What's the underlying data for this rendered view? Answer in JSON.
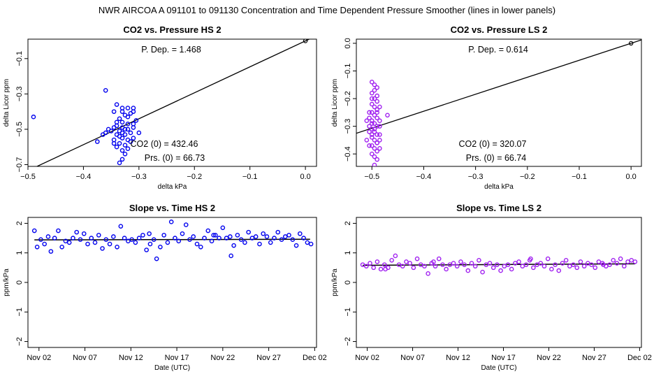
{
  "page_title": "NWR   AIRCOA A   091101 to 091130   Concentration and Time Dependent Pressure Smoother (lines in lower panels)",
  "colors": {
    "hs": "#0000ee",
    "ls": "#a020f0",
    "line": "#000000"
  },
  "chart_data": [
    {
      "id": "p1",
      "type": "scatter",
      "title": "CO2 vs. Pressure HS 2",
      "xlabel": "delta kPa",
      "ylabel": "delta Licor ppm",
      "xlim": [
        -0.5,
        0.02
      ],
      "ylim": [
        -0.71,
        0.01
      ],
      "xticks": [
        -0.5,
        -0.4,
        -0.3,
        -0.2,
        -0.1,
        0.0
      ],
      "xtick_labels": [
        "−0.5",
        "−0.4",
        "−0.3",
        "−0.2",
        "−0.1",
        "0.0"
      ],
      "yticks": [
        -0.7,
        -0.5,
        -0.3,
        -0.1
      ],
      "ytick_labels": [
        "−0.7",
        "−0.5",
        "−0.3",
        "−0.1"
      ],
      "fit_line": {
        "slope": 1.468,
        "intercept": 0.0
      },
      "origin_point": [
        0.0,
        0.0
      ],
      "series_color": "#0000ee",
      "points": [
        [
          -0.49,
          -0.43
        ],
        [
          -0.36,
          -0.28
        ],
        [
          -0.34,
          -0.36
        ],
        [
          -0.345,
          -0.4
        ],
        [
          -0.33,
          -0.38
        ],
        [
          -0.32,
          -0.38
        ],
        [
          -0.31,
          -0.38
        ],
        [
          -0.325,
          -0.42
        ],
        [
          -0.315,
          -0.41
        ],
        [
          -0.335,
          -0.44
        ],
        [
          -0.33,
          -0.46
        ],
        [
          -0.32,
          -0.47
        ],
        [
          -0.34,
          -0.48
        ],
        [
          -0.31,
          -0.49
        ],
        [
          -0.325,
          -0.5
        ],
        [
          -0.335,
          -0.51
        ],
        [
          -0.33,
          -0.52
        ],
        [
          -0.315,
          -0.52
        ],
        [
          -0.34,
          -0.53
        ],
        [
          -0.35,
          -0.51
        ],
        [
          -0.345,
          -0.49
        ],
        [
          -0.36,
          -0.52
        ],
        [
          -0.365,
          -0.53
        ],
        [
          -0.375,
          -0.57
        ],
        [
          -0.33,
          -0.55
        ],
        [
          -0.32,
          -0.56
        ],
        [
          -0.335,
          -0.58
        ],
        [
          -0.31,
          -0.55
        ],
        [
          -0.325,
          -0.59
        ],
        [
          -0.345,
          -0.58
        ],
        [
          -0.34,
          -0.6
        ],
        [
          -0.33,
          -0.62
        ],
        [
          -0.325,
          -0.64
        ],
        [
          -0.33,
          -0.67
        ],
        [
          -0.335,
          -0.69
        ],
        [
          -0.3,
          -0.52
        ],
        [
          -0.305,
          -0.45
        ],
        [
          -0.32,
          -0.43
        ],
        [
          -0.33,
          -0.4
        ],
        [
          -0.34,
          -0.46
        ],
        [
          -0.335,
          -0.54
        ],
        [
          -0.32,
          -0.5
        ],
        [
          -0.31,
          -0.47
        ],
        [
          -0.33,
          -0.49
        ],
        [
          -0.315,
          -0.57
        ],
        [
          -0.325,
          -0.53
        ],
        [
          -0.355,
          -0.5
        ],
        [
          -0.31,
          -0.4
        ],
        [
          -0.345,
          -0.56
        ],
        [
          -0.32,
          -0.61
        ]
      ],
      "annotations": [
        "P. Dep. =  1.468",
        "CO2 (0) =  432.46",
        "Prs. (0) =  66.73"
      ]
    },
    {
      "id": "p2",
      "type": "scatter",
      "title": "CO2 vs. Pressure LS 2",
      "xlabel": "delta kPa",
      "ylabel": "delta Licor ppm",
      "xlim": [
        -0.53,
        0.02
      ],
      "ylim": [
        -0.445,
        0.015
      ],
      "xticks": [
        -0.5,
        -0.4,
        -0.3,
        -0.2,
        -0.1,
        0.0
      ],
      "xtick_labels": [
        "−0.5",
        "−0.4",
        "−0.3",
        "−0.2",
        "−0.1",
        "0.0"
      ],
      "yticks": [
        -0.4,
        -0.3,
        -0.2,
        -0.1,
        0.0
      ],
      "ytick_labels": [
        "−0.4",
        "−0.3",
        "−0.2",
        "−0.1",
        "0.0"
      ],
      "fit_line": {
        "slope": 0.614,
        "intercept": 0.0
      },
      "origin_point": [
        0.0,
        0.0
      ],
      "series_color": "#a020f0",
      "points": [
        [
          -0.5,
          -0.14
        ],
        [
          -0.495,
          -0.15
        ],
        [
          -0.49,
          -0.16
        ],
        [
          -0.5,
          -0.18
        ],
        [
          -0.495,
          -0.2
        ],
        [
          -0.49,
          -0.21
        ],
        [
          -0.5,
          -0.22
        ],
        [
          -0.495,
          -0.23
        ],
        [
          -0.49,
          -0.24
        ],
        [
          -0.5,
          -0.25
        ],
        [
          -0.495,
          -0.26
        ],
        [
          -0.49,
          -0.27
        ],
        [
          -0.5,
          -0.28
        ],
        [
          -0.495,
          -0.29
        ],
        [
          -0.49,
          -0.3
        ],
        [
          -0.5,
          -0.31
        ],
        [
          -0.495,
          -0.32
        ],
        [
          -0.49,
          -0.33
        ],
        [
          -0.5,
          -0.34
        ],
        [
          -0.495,
          -0.35
        ],
        [
          -0.49,
          -0.36
        ],
        [
          -0.5,
          -0.37
        ],
        [
          -0.495,
          -0.38
        ],
        [
          -0.49,
          -0.39
        ],
        [
          -0.5,
          -0.4
        ],
        [
          -0.495,
          -0.41
        ],
        [
          -0.49,
          -0.42
        ],
        [
          -0.495,
          -0.44
        ],
        [
          -0.51,
          -0.35
        ],
        [
          -0.505,
          -0.3
        ],
        [
          -0.485,
          -0.28
        ],
        [
          -0.47,
          -0.26
        ],
        [
          -0.485,
          -0.33
        ],
        [
          -0.505,
          -0.25
        ],
        [
          -0.51,
          -0.28
        ],
        [
          -0.485,
          -0.23
        ],
        [
          -0.485,
          -0.38
        ],
        [
          -0.505,
          -0.37
        ],
        [
          -0.5,
          -0.2
        ],
        [
          -0.49,
          -0.19
        ],
        [
          -0.505,
          -0.32
        ],
        [
          -0.485,
          -0.3
        ],
        [
          -0.495,
          -0.17
        ],
        [
          -0.49,
          -0.25
        ],
        [
          -0.5,
          -0.29
        ],
        [
          -0.485,
          -0.35
        ],
        [
          -0.495,
          -0.31
        ],
        [
          -0.505,
          -0.27
        ],
        [
          -0.49,
          -0.36
        ],
        [
          -0.5,
          -0.33
        ]
      ],
      "annotations": [
        "P. Dep. =  0.614",
        "CO2 (0) =  320.07",
        "Prs. (0) =  66.74"
      ]
    },
    {
      "id": "p3",
      "type": "scatter",
      "title": "Slope vs. Time HS 2",
      "xlabel": "Date (UTC)",
      "ylabel": "ppm/kPa",
      "xlim": [
        -0.2,
        31.2
      ],
      "ylim": [
        -2.2,
        2.2
      ],
      "xticks": [
        1,
        6,
        11,
        16,
        21,
        26,
        31
      ],
      "xtick_labels": [
        "Nov 02",
        "Nov 07",
        "Nov 12",
        "Nov 17",
        "Nov 22",
        "Nov 27",
        "Dec 02"
      ],
      "yticks": [
        -2,
        -1,
        0,
        1,
        2
      ],
      "ytick_labels": [
        "−2",
        "−1",
        "0",
        "1",
        "2"
      ],
      "smoother": {
        "x": [
          0.5,
          30.5
        ],
        "y": [
          1.44,
          1.46
        ]
      },
      "series_color": "#0000ee",
      "points": [
        [
          0.5,
          1.75
        ],
        [
          0.8,
          1.2
        ],
        [
          1.2,
          1.45
        ],
        [
          1.6,
          1.3
        ],
        [
          2.0,
          1.55
        ],
        [
          2.3,
          1.05
        ],
        [
          2.7,
          1.5
        ],
        [
          3.1,
          1.75
        ],
        [
          3.5,
          1.2
        ],
        [
          3.9,
          1.4
        ],
        [
          4.3,
          1.35
        ],
        [
          4.7,
          1.5
        ],
        [
          5.1,
          1.7
        ],
        [
          5.5,
          1.45
        ],
        [
          5.9,
          1.65
        ],
        [
          6.3,
          1.3
        ],
        [
          6.7,
          1.5
        ],
        [
          7.1,
          1.35
        ],
        [
          7.5,
          1.6
        ],
        [
          7.9,
          1.15
        ],
        [
          8.3,
          1.45
        ],
        [
          8.7,
          1.3
        ],
        [
          9.1,
          1.55
        ],
        [
          9.5,
          1.2
        ],
        [
          9.9,
          1.9
        ],
        [
          10.3,
          1.5
        ],
        [
          10.7,
          1.4
        ],
        [
          11.1,
          1.45
        ],
        [
          11.5,
          1.35
        ],
        [
          11.9,
          1.5
        ],
        [
          12.3,
          1.6
        ],
        [
          12.7,
          1.1
        ],
        [
          13.1,
          1.3
        ],
        [
          13.5,
          1.45
        ],
        [
          13.8,
          0.8
        ],
        [
          14.2,
          1.2
        ],
        [
          14.6,
          1.6
        ],
        [
          15.0,
          1.35
        ],
        [
          15.4,
          2.05
        ],
        [
          15.8,
          1.5
        ],
        [
          16.2,
          1.4
        ],
        [
          16.6,
          1.65
        ],
        [
          17.0,
          1.95
        ],
        [
          17.4,
          1.45
        ],
        [
          17.8,
          1.55
        ],
        [
          18.2,
          1.3
        ],
        [
          18.6,
          1.2
        ],
        [
          19.0,
          1.5
        ],
        [
          19.4,
          1.75
        ],
        [
          19.8,
          1.4
        ],
        [
          20.2,
          1.6
        ],
        [
          20.6,
          1.5
        ],
        [
          21.0,
          1.85
        ],
        [
          21.4,
          1.5
        ],
        [
          21.8,
          1.55
        ],
        [
          22.2,
          1.25
        ],
        [
          22.6,
          1.6
        ],
        [
          23.0,
          1.45
        ],
        [
          23.4,
          1.35
        ],
        [
          23.8,
          1.7
        ],
        [
          24.2,
          1.5
        ],
        [
          24.6,
          1.55
        ],
        [
          25.0,
          1.3
        ],
        [
          25.4,
          1.65
        ],
        [
          25.8,
          1.55
        ],
        [
          26.2,
          1.35
        ],
        [
          26.6,
          1.5
        ],
        [
          27.0,
          1.7
        ],
        [
          27.4,
          1.45
        ],
        [
          27.8,
          1.55
        ],
        [
          28.2,
          1.6
        ],
        [
          28.6,
          1.45
        ],
        [
          29.0,
          1.25
        ],
        [
          29.4,
          1.65
        ],
        [
          29.8,
          1.5
        ],
        [
          30.2,
          1.35
        ],
        [
          30.6,
          1.3
        ],
        [
          20.0,
          1.6
        ],
        [
          21.9,
          0.9
        ],
        [
          13.0,
          1.65
        ]
      ]
    },
    {
      "id": "p4",
      "type": "scatter",
      "title": "Slope vs. Time LS 2",
      "xlabel": "Date (UTC)",
      "ylabel": "ppm/kPa",
      "xlim": [
        -0.2,
        31.2
      ],
      "ylim": [
        -2.2,
        2.2
      ],
      "xticks": [
        1,
        6,
        11,
        16,
        21,
        26,
        31
      ],
      "xtick_labels": [
        "Nov 02",
        "Nov 07",
        "Nov 12",
        "Nov 17",
        "Nov 22",
        "Nov 27",
        "Dec 02"
      ],
      "yticks": [
        -2,
        -1,
        0,
        1,
        2
      ],
      "ytick_labels": [
        "−2",
        "−1",
        "0",
        "1",
        "2"
      ],
      "smoother": {
        "x": [
          0.5,
          30.5
        ],
        "y": [
          0.58,
          0.63
        ]
      },
      "series_color": "#a020f0",
      "points": [
        [
          0.5,
          0.6
        ],
        [
          0.9,
          0.55
        ],
        [
          1.3,
          0.65
        ],
        [
          1.7,
          0.5
        ],
        [
          2.1,
          0.7
        ],
        [
          2.5,
          0.45
        ],
        [
          2.9,
          0.6
        ],
        [
          3.3,
          0.5
        ],
        [
          3.7,
          0.75
        ],
        [
          4.1,
          0.9
        ],
        [
          4.5,
          0.6
        ],
        [
          4.9,
          0.55
        ],
        [
          5.3,
          0.7
        ],
        [
          5.7,
          0.65
        ],
        [
          6.1,
          0.5
        ],
        [
          6.5,
          0.8
        ],
        [
          6.9,
          0.6
        ],
        [
          7.3,
          0.55
        ],
        [
          7.7,
          0.3
        ],
        [
          8.1,
          0.65
        ],
        [
          8.5,
          0.55
        ],
        [
          8.9,
          0.8
        ],
        [
          9.3,
          0.6
        ],
        [
          9.7,
          0.45
        ],
        [
          10.1,
          0.6
        ],
        [
          10.5,
          0.65
        ],
        [
          10.9,
          0.55
        ],
        [
          11.3,
          0.7
        ],
        [
          11.7,
          0.6
        ],
        [
          12.1,
          0.4
        ],
        [
          12.5,
          0.65
        ],
        [
          12.9,
          0.55
        ],
        [
          13.3,
          0.75
        ],
        [
          13.7,
          0.35
        ],
        [
          14.1,
          0.6
        ],
        [
          14.5,
          0.65
        ],
        [
          14.9,
          0.5
        ],
        [
          15.3,
          0.6
        ],
        [
          15.7,
          0.4
        ],
        [
          16.1,
          0.55
        ],
        [
          16.5,
          0.6
        ],
        [
          16.9,
          0.45
        ],
        [
          17.3,
          0.65
        ],
        [
          17.7,
          0.7
        ],
        [
          18.1,
          0.55
        ],
        [
          18.5,
          0.6
        ],
        [
          18.9,
          0.75
        ],
        [
          19.3,
          0.5
        ],
        [
          19.7,
          0.6
        ],
        [
          20.1,
          0.65
        ],
        [
          20.5,
          0.55
        ],
        [
          20.9,
          0.8
        ],
        [
          21.3,
          0.45
        ],
        [
          21.7,
          0.6
        ],
        [
          22.1,
          0.4
        ],
        [
          22.5,
          0.65
        ],
        [
          22.9,
          0.75
        ],
        [
          23.3,
          0.55
        ],
        [
          23.7,
          0.6
        ],
        [
          24.1,
          0.5
        ],
        [
          24.5,
          0.7
        ],
        [
          24.9,
          0.55
        ],
        [
          25.3,
          0.65
        ],
        [
          25.7,
          0.6
        ],
        [
          26.1,
          0.5
        ],
        [
          26.5,
          0.7
        ],
        [
          26.9,
          0.65
        ],
        [
          27.3,
          0.55
        ],
        [
          27.7,
          0.6
        ],
        [
          28.1,
          0.75
        ],
        [
          28.5,
          0.65
        ],
        [
          28.9,
          0.8
        ],
        [
          29.3,
          0.55
        ],
        [
          29.7,
          0.7
        ],
        [
          30.1,
          0.75
        ],
        [
          30.5,
          0.7
        ],
        [
          3.0,
          0.45
        ],
        [
          8.3,
          0.7
        ],
        [
          19.0,
          0.8
        ],
        [
          27.0,
          0.6
        ]
      ]
    }
  ]
}
